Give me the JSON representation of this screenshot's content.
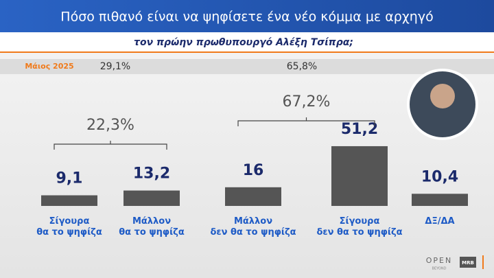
{
  "chart_data": {
    "type": "bar",
    "title": "Πόσο πιθανό είναι να ψηφίσετε ένα νέο κόμμα με αρχηγό",
    "subtitle": "τον πρώην πρωθυπουργό Αλέξη Τσίπρα;",
    "categories": [
      "Σίγουρα\nθα το ψηφίζα",
      "Μάλλον\nθα το ψηφίζα",
      "Μάλλον\nδεν θα το ψηφίζα",
      "Σίγουρα\nδεν θα το ψηφίζα",
      "ΔΞ/ΔΑ"
    ],
    "values": [
      9.1,
      13.2,
      16,
      51.2,
      10.4
    ],
    "value_labels": [
      "9,1",
      "13,2",
      "16",
      "51,2",
      "10,4"
    ],
    "color": "#555555",
    "groups": [
      {
        "value": 22.3,
        "label": "22,3%"
      },
      {
        "value": 67.2,
        "label": "67,2%"
      }
    ],
    "comparison": {
      "label": "Μάιος 2025",
      "values": [
        29.1,
        65.8
      ],
      "value_labels": [
        "29,1%",
        "65,8%"
      ]
    },
    "footer": {
      "brand": "OPEN",
      "brand_sub": "BEYOND",
      "pollster": "MRB"
    }
  }
}
